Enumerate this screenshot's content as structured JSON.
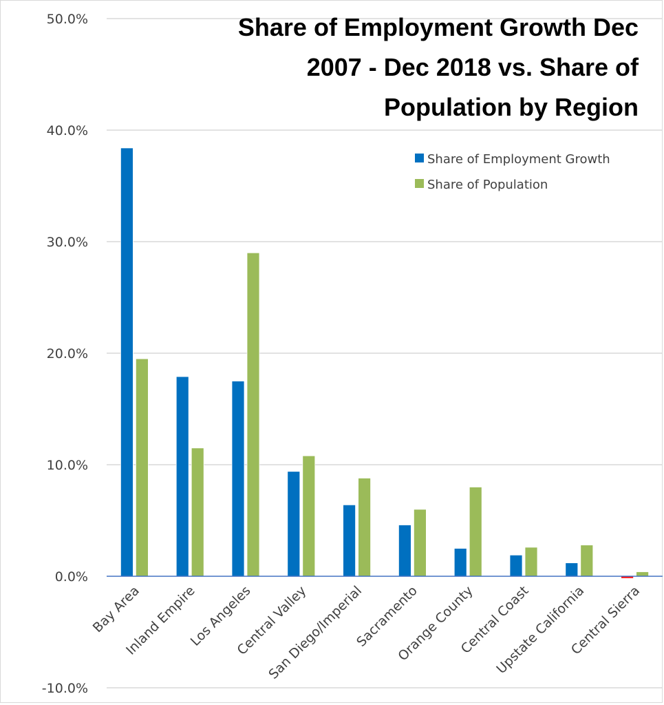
{
  "chart_data": {
    "type": "bar",
    "title": "Share of Employment Growth Dec 2007 - Dec 2018 vs. Share of Population by Region",
    "title_lines": [
      "Share of Employment Growth Dec",
      "2007 - Dec 2018 vs. Share of",
      "Population by Region"
    ],
    "xlabel": "",
    "ylabel": "",
    "ylim": [
      -10,
      50
    ],
    "yticks": [
      -10,
      0,
      10,
      20,
      30,
      40,
      50
    ],
    "ytick_labels": [
      "-10.0%",
      "0.0%",
      "10.0%",
      "20.0%",
      "30.0%",
      "40.0%",
      "50.0%"
    ],
    "grid": true,
    "legend_position": "top-right",
    "categories": [
      "Bay Area",
      "Inland Empire",
      "Los Angeles",
      "Central Valley",
      "San Diego/Imperial",
      "Sacramento",
      "Orange County",
      "Central Coast",
      "Upstate California",
      "Central Sierra"
    ],
    "series": [
      {
        "name": "Share of Employment Growth",
        "color": "#0070C0",
        "negative_color": "#FF0000",
        "values": [
          38.4,
          17.9,
          17.5,
          9.4,
          6.4,
          4.6,
          2.5,
          1.9,
          1.2,
          -0.1
        ]
      },
      {
        "name": "Share of Population",
        "color": "#9BBB59",
        "values": [
          19.5,
          11.5,
          29.0,
          10.8,
          8.8,
          6.0,
          8.0,
          2.6,
          2.8,
          0.4
        ]
      }
    ]
  }
}
